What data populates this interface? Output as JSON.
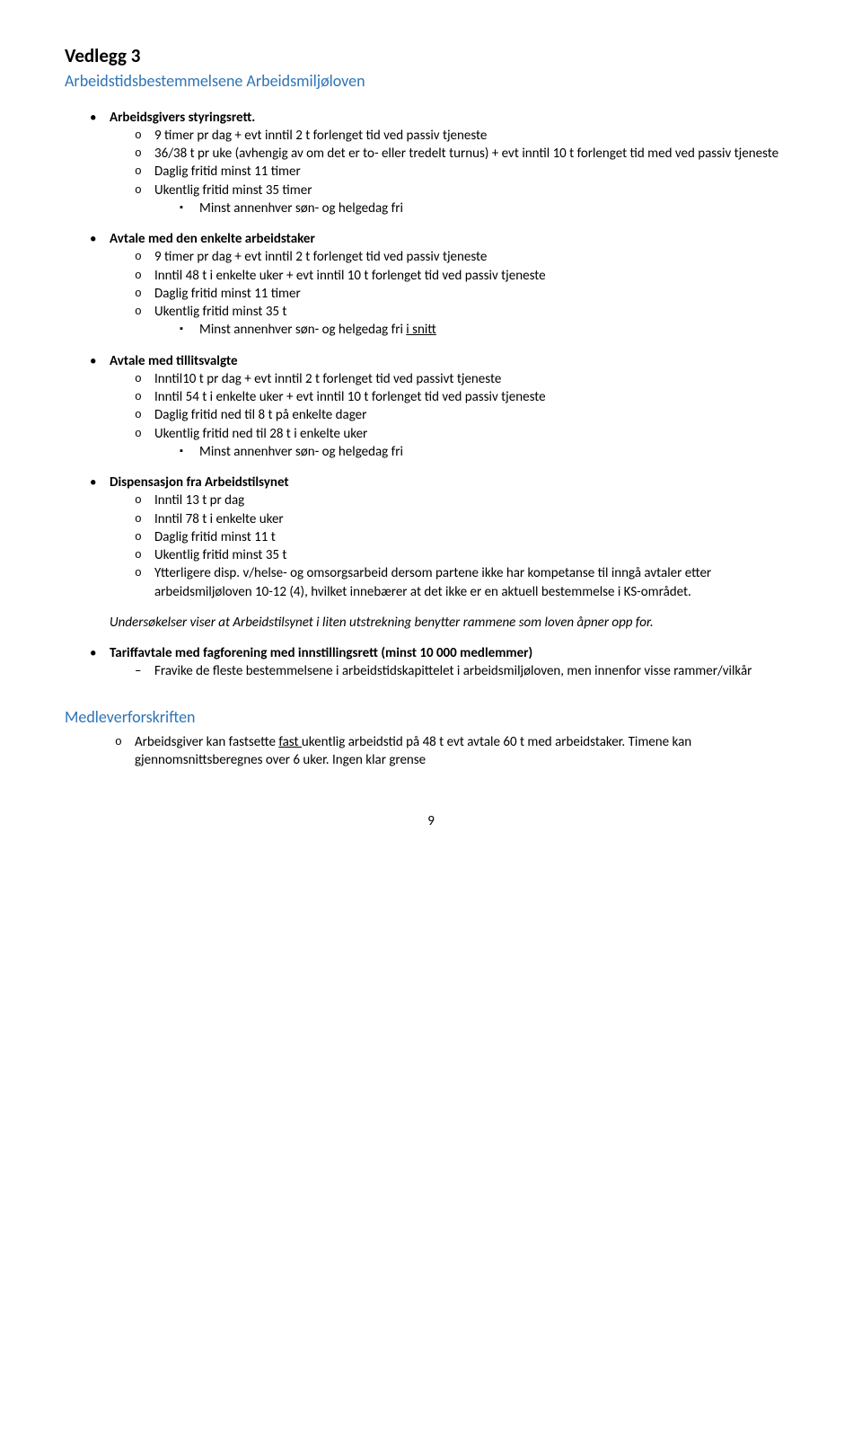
{
  "title": "Vedlegg 3",
  "subtitle": "Arbeidstidsbestemmelsene Arbeidsmiljøloven",
  "sections": [
    {
      "heading": "Arbeidsgivers styringsrett.",
      "heading_bold": true,
      "items": [
        "9 timer pr dag + evt inntil 2 t forlenget tid ved passiv tjeneste",
        "36/38 t pr uke (avhengig av om det er to- eller tredelt turnus) + evt inntil 10 t forlenget tid med ved passiv tjeneste",
        "Daglig fritid minst 11 timer",
        "Ukentlig fritid minst 35 timer"
      ],
      "subitems": [
        "Minst annenhver søn- og helgedag fri"
      ]
    },
    {
      "heading": "Avtale med den enkelte arbeidstaker",
      "heading_bold": true,
      "items": [
        "9 timer pr dag + evt inntil 2 t forlenget tid ved passiv tjeneste",
        "Inntil 48 t i enkelte uker + evt inntil 10 t forlenget tid ved passiv tjeneste",
        "Daglig fritid minst 11 timer",
        "Ukentlig fritid minst 35 t"
      ],
      "subitems_html": "Minst annenhver søn- og helgedag fri <span class=\"underline\">i snitt</span>"
    },
    {
      "heading": "Avtale med tillitsvalgte",
      "heading_bold": true,
      "items": [
        "Inntil10 t pr dag + evt inntil 2 t forlenget tid ved passivt tjeneste",
        "Inntil 54 t i enkelte uker + evt inntil 10 t forlenget tid ved passiv tjeneste",
        "Daglig fritid ned til 8 t på enkelte dager",
        "Ukentlig fritid ned til 28 t i enkelte uker"
      ],
      "subitems": [
        "Minst annenhver søn- og helgedag fri"
      ]
    }
  ],
  "dispensasjon": {
    "heading": "Dispensasjon fra Arbeidstilsynet",
    "items": [
      "Inntil 13 t pr dag",
      "Inntil 78 t i enkelte uker",
      "Daglig fritid minst 11 t",
      "Ukentlig fritid minst 35 t",
      "Ytterligere disp. v/helse- og omsorgsarbeid dersom partene ikke har kompetanse til inngå avtaler etter arbeidsmiljøloven 10-12 (4), hvilket innebærer at det ikke er en aktuell bestemmelse i KS-området."
    ],
    "note": "Undersøkelser viser at Arbeidstilsynet i liten utstrekning benytter rammene som loven åpner opp for."
  },
  "tariff": {
    "heading": "Tariffavtale med fagforening med innstillingsrett (minst 10 000 medlemmer)",
    "item": "Fravike de fleste bestemmelsene i arbeidstidskapittelet i arbeidsmiljøloven, men innenfor visse rammer/vilkår"
  },
  "medlever": {
    "heading": "Medleverforskriften",
    "item_html": "Arbeidsgiver kan fastsette <span class=\"underline\">fast </span>ukentlig arbeidstid på 48 t evt avtale 60 t med arbeidstaker. Timene kan gjennomsnittsberegnes over 6 uker. Ingen klar grense"
  },
  "page_number": "9",
  "colors": {
    "heading_blue": "#2e74b5",
    "text": "#000000",
    "background": "#ffffff"
  }
}
